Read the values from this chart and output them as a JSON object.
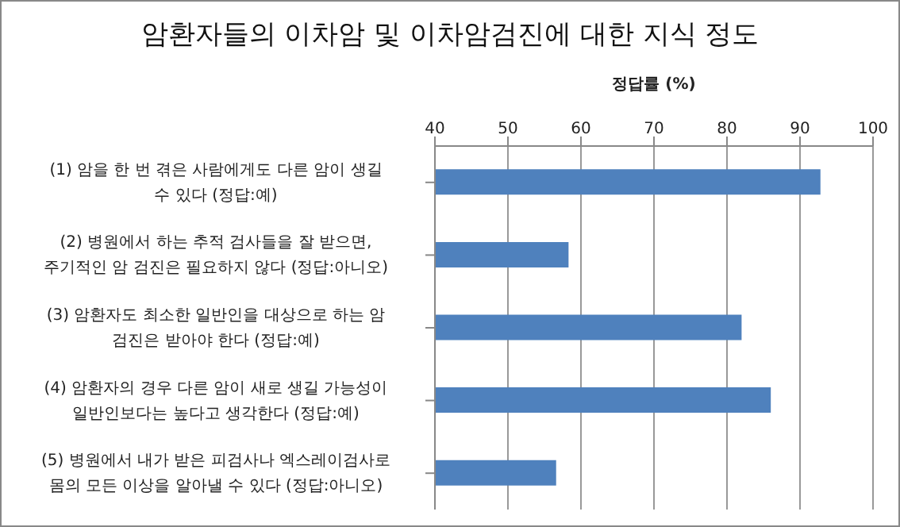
{
  "chart_data": {
    "type": "bar",
    "orientation": "horizontal",
    "title": "암환자들의 이차암 및 이차암검진에 대한 지식 정도",
    "xlabel": "정답률 (%)",
    "categories": [
      "(1) 암을 한 번 겪은 사람에게도 다른 암이 생길 수 있다 (정답:예)",
      "(2) 병원에서 하는 추적 검사들을 잘 받으면, 주기적인 암 검진은 필요하지 않다 (정답:아니오)",
      "(3) 암환자도 최소한 일반인을 대상으로 하는 암 검진은 받아야 한다 (정답:예)",
      "(4) 암환자의 경우 다른 암이 새로 생길 가능성이 일반인보다는 높다고 생각한다 (정답:예)",
      "(5) 병원에서 내가 받은 피검사나 엑스레이검사로 몸의 모든 이상을 알아낼 수 있다 (정답:아니오)"
    ],
    "values": [
      92.8,
      58.3,
      82.0,
      86.0,
      56.6
    ],
    "color": "#4f81bd",
    "xlim": [
      40,
      100
    ],
    "xticks": [
      40,
      50,
      60,
      70,
      80,
      90,
      100
    ],
    "grid": "x"
  }
}
